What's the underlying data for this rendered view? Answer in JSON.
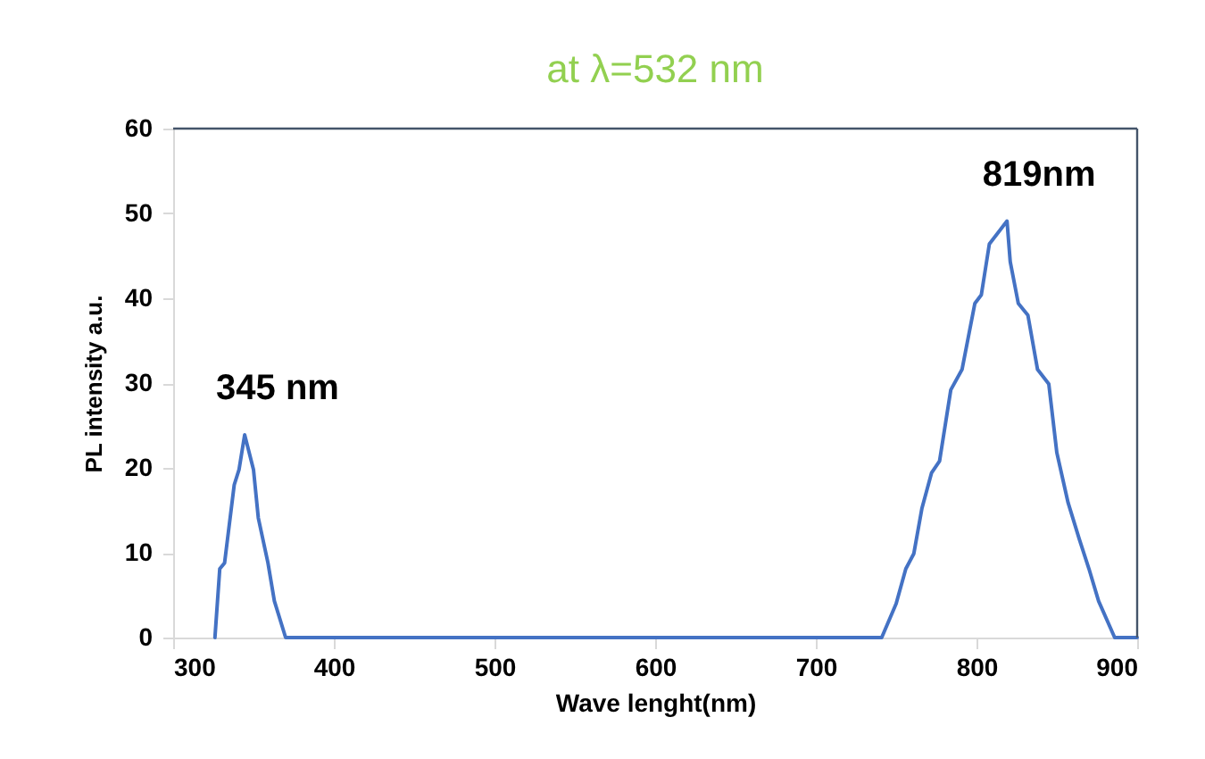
{
  "chart_data": {
    "type": "line",
    "title": "at λ=532 nm",
    "xlabel": "Wave lenght(nm)",
    "ylabel": "PL intensity a.u.",
    "series": [
      {
        "color": "#4472c4",
        "x": [
          326,
          329,
          332,
          338,
          341,
          344.5,
          350,
          353,
          359,
          363,
          370,
          741,
          750,
          756,
          761,
          766,
          772,
          777,
          784,
          791,
          799,
          803,
          808,
          819,
          821,
          826,
          832,
          838,
          845,
          850,
          857,
          864,
          870,
          876,
          886,
          900
        ],
        "values": [
          0,
          8.1,
          8.8,
          18,
          19.8,
          23.9,
          19.8,
          14.1,
          8.8,
          4.3,
          0,
          0,
          4,
          8.1,
          9.9,
          15.2,
          19.4,
          20.8,
          29.2,
          31.6,
          39.4,
          40.4,
          46.4,
          49.1,
          44.3,
          39.4,
          38,
          31.6,
          29.9,
          21.8,
          15.9,
          11.6,
          8.1,
          4.3,
          0,
          0
        ]
      }
    ],
    "xlim": [
      300,
      900
    ],
    "xticks": [
      300,
      400,
      500,
      600,
      700,
      800,
      900
    ],
    "ylim": [
      0,
      60
    ],
    "yticks": [
      0,
      10,
      20,
      30,
      40,
      50,
      60
    ],
    "grid": false,
    "annotations": [
      {
        "text": "345 nm",
        "x": 345,
        "y": 23.9
      },
      {
        "text": "819nm",
        "x": 819,
        "y": 49.1
      }
    ],
    "ref_lines": [
      {
        "axis": "y",
        "value": 60,
        "color": "#44546a"
      },
      {
        "axis": "x",
        "value": 900,
        "color": "#44546a"
      }
    ]
  }
}
